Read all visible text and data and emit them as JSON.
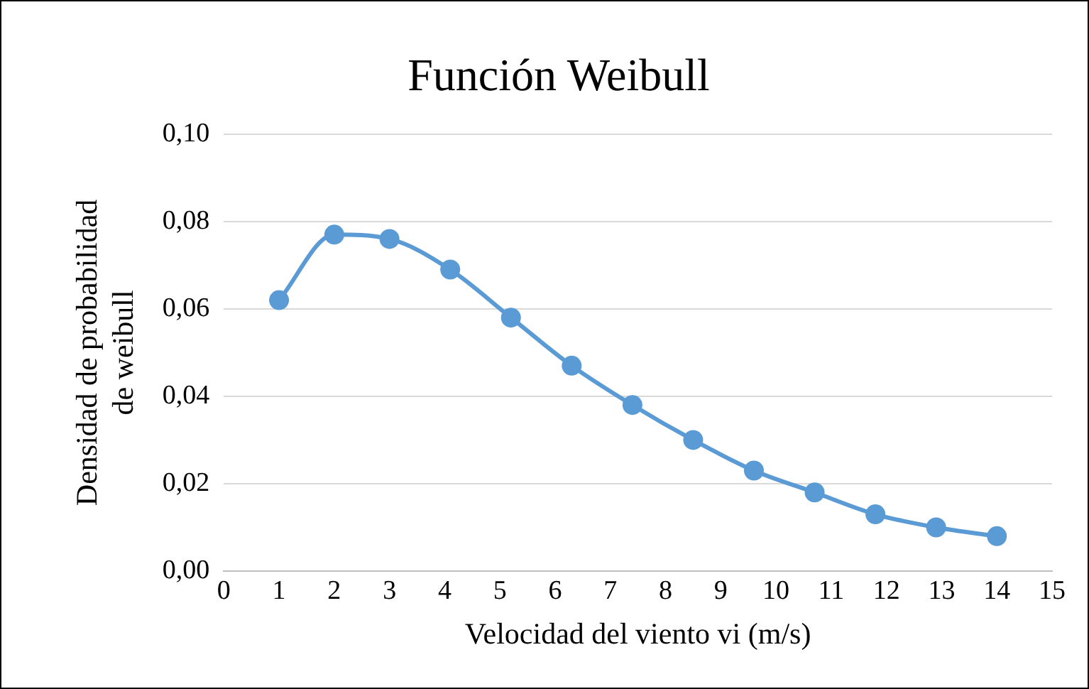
{
  "chart_data": {
    "type": "line",
    "title": "Función Weibull",
    "xlabel": "Velocidad del viento vi (m/s)",
    "ylabel": "Densidad de probabilidad\nde weibull",
    "x": [
      1,
      2,
      3,
      4.1,
      5.2,
      6.3,
      7.4,
      8.5,
      9.6,
      10.7,
      11.8,
      12.9,
      14
    ],
    "series": [
      {
        "color": "#5b9bd5",
        "values": [
          0.062,
          0.077,
          0.076,
          0.069,
          0.058,
          0.047,
          0.038,
          0.03,
          0.023,
          0.018,
          0.013,
          0.01,
          0.008
        ]
      }
    ],
    "xlim": [
      0,
      15
    ],
    "xticks": [
      0,
      1,
      2,
      3,
      4,
      5,
      6,
      7,
      8,
      9,
      10,
      11,
      12,
      13,
      14,
      15
    ],
    "ylim": [
      0,
      0.1
    ],
    "yticks": [
      {
        "value": 0,
        "label": "0,00"
      },
      {
        "value": 0.02,
        "label": "0,02"
      },
      {
        "value": 0.04,
        "label": "0,04"
      },
      {
        "value": 0.06,
        "label": "0,06"
      },
      {
        "value": 0.08,
        "label": "0,08"
      },
      {
        "value": 0.1,
        "label": "0,10"
      }
    ],
    "grid": "y",
    "legend": false,
    "marker": "circle",
    "line_style": "solid"
  }
}
